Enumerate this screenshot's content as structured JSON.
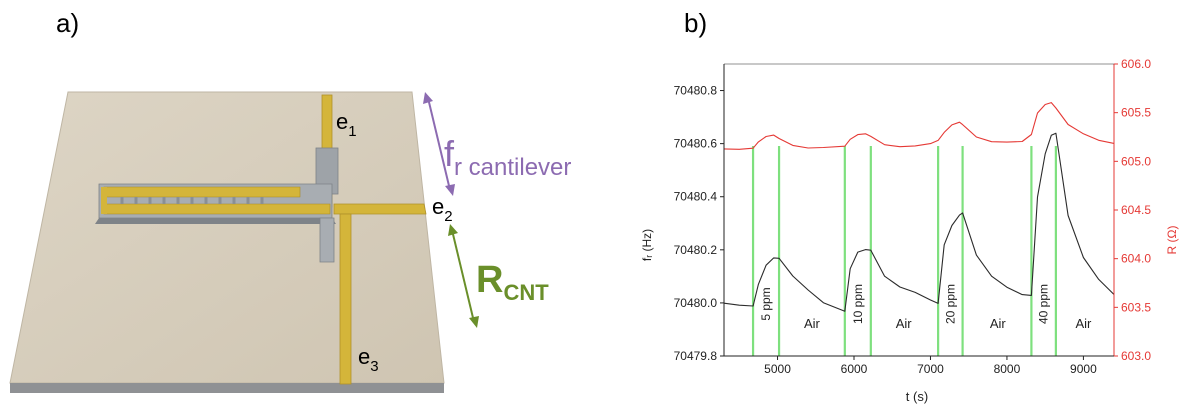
{
  "panel_labels": {
    "a": "a)",
    "b": "b)"
  },
  "device": {
    "electrodes": [
      {
        "base": "e",
        "sub": "1"
      },
      {
        "base": "e",
        "sub": "2"
      },
      {
        "base": "e",
        "sub": "3"
      }
    ],
    "fr": {
      "base": "f",
      "sub": "r cantilever"
    },
    "rcnt": {
      "base": "R",
      "sub": "CNT"
    },
    "colors": {
      "fr": "#8c6bb1",
      "rcnt": "#6a8f2a",
      "electrode": "#d4b53a",
      "substrate": "#d6cdbc"
    }
  },
  "chart_data": {
    "type": "line",
    "xlabel": "t (s)",
    "ylabel_left": "fᵣ (Hz)",
    "ylabel_right": "R (Ω)",
    "xlim": [
      4300,
      9400
    ],
    "ylim_left": [
      70479.8,
      70480.9
    ],
    "ylim_right": [
      603.0,
      606.0
    ],
    "x_ticks": [
      5000,
      6000,
      7000,
      8000,
      9000
    ],
    "y_left_ticks": [
      70479.8,
      70480.0,
      70480.2,
      70480.4,
      70480.6,
      70480.8
    ],
    "y_right_ticks": [
      603.0,
      603.5,
      604.0,
      604.5,
      605.0,
      605.5,
      606.0
    ],
    "tick_labels": {
      "x": [
        "5000",
        "6000",
        "7000",
        "8000",
        "9000"
      ],
      "y_left": [
        "70479.8",
        "70480.0",
        "70480.2",
        "70480.4",
        "70480.6",
        "70480.8"
      ],
      "y_right": [
        "603.0",
        "603.5",
        "604.0",
        "604.5",
        "605.0",
        "605.5",
        "606.0"
      ]
    },
    "exposure_lines_x": [
      4680,
      5020,
      5880,
      6220,
      7100,
      7420,
      8320,
      8640
    ],
    "phase_labels": [
      {
        "text": "5 ppm",
        "x": 4850,
        "rotated": true
      },
      {
        "text": "Air",
        "x": 5450,
        "rotated": false
      },
      {
        "text": "10 ppm",
        "x": 6050,
        "rotated": true
      },
      {
        "text": "Air",
        "x": 6650,
        "rotated": false
      },
      {
        "text": "20 ppm",
        "x": 7260,
        "rotated": true
      },
      {
        "text": "Air",
        "x": 7880,
        "rotated": false
      },
      {
        "text": "40 ppm",
        "x": 8480,
        "rotated": true
      },
      {
        "text": "Air",
        "x": 9000,
        "rotated": false
      }
    ],
    "series": [
      {
        "axis": "left",
        "color": "#2b2b2b",
        "x": [
          4300,
          4500,
          4680,
          4750,
          4850,
          4950,
          5020,
          5200,
          5400,
          5600,
          5880,
          5950,
          6050,
          6150,
          6220,
          6400,
          6600,
          6800,
          7000,
          7100,
          7180,
          7280,
          7380,
          7420,
          7600,
          7800,
          8000,
          8200,
          8320,
          8400,
          8500,
          8580,
          8640,
          8800,
          9000,
          9200,
          9400
        ],
        "y": [
          70480.0,
          70479.99,
          70479.99,
          70480.07,
          70480.14,
          70480.17,
          70480.17,
          70480.1,
          70480.05,
          70480.0,
          70479.97,
          70480.13,
          70480.19,
          70480.2,
          70480.2,
          70480.1,
          70480.06,
          70480.04,
          70480.01,
          70480.0,
          70480.22,
          70480.29,
          70480.33,
          70480.34,
          70480.18,
          70480.1,
          70480.06,
          70480.03,
          70480.03,
          70480.4,
          70480.56,
          70480.63,
          70480.64,
          70480.33,
          70480.17,
          70480.09,
          70480.03
        ]
      },
      {
        "axis": "right",
        "color": "#e53935",
        "x": [
          4300,
          4500,
          4680,
          4750,
          4850,
          4950,
          5020,
          5200,
          5400,
          5600,
          5880,
          5950,
          6050,
          6150,
          6220,
          6400,
          6600,
          6800,
          7000,
          7100,
          7180,
          7280,
          7380,
          7420,
          7600,
          7800,
          8000,
          8200,
          8320,
          8400,
          8500,
          8580,
          8640,
          8800,
          9000,
          9200,
          9400
        ],
        "y": [
          605.13,
          605.12,
          605.14,
          605.2,
          605.25,
          605.27,
          605.24,
          605.16,
          605.14,
          605.14,
          605.16,
          605.23,
          605.27,
          605.28,
          605.26,
          605.17,
          605.15,
          605.16,
          605.18,
          605.22,
          605.3,
          605.37,
          605.4,
          605.38,
          605.25,
          605.2,
          605.2,
          605.2,
          605.28,
          605.5,
          605.58,
          605.6,
          605.55,
          605.38,
          605.28,
          605.22,
          605.18
        ]
      }
    ]
  }
}
